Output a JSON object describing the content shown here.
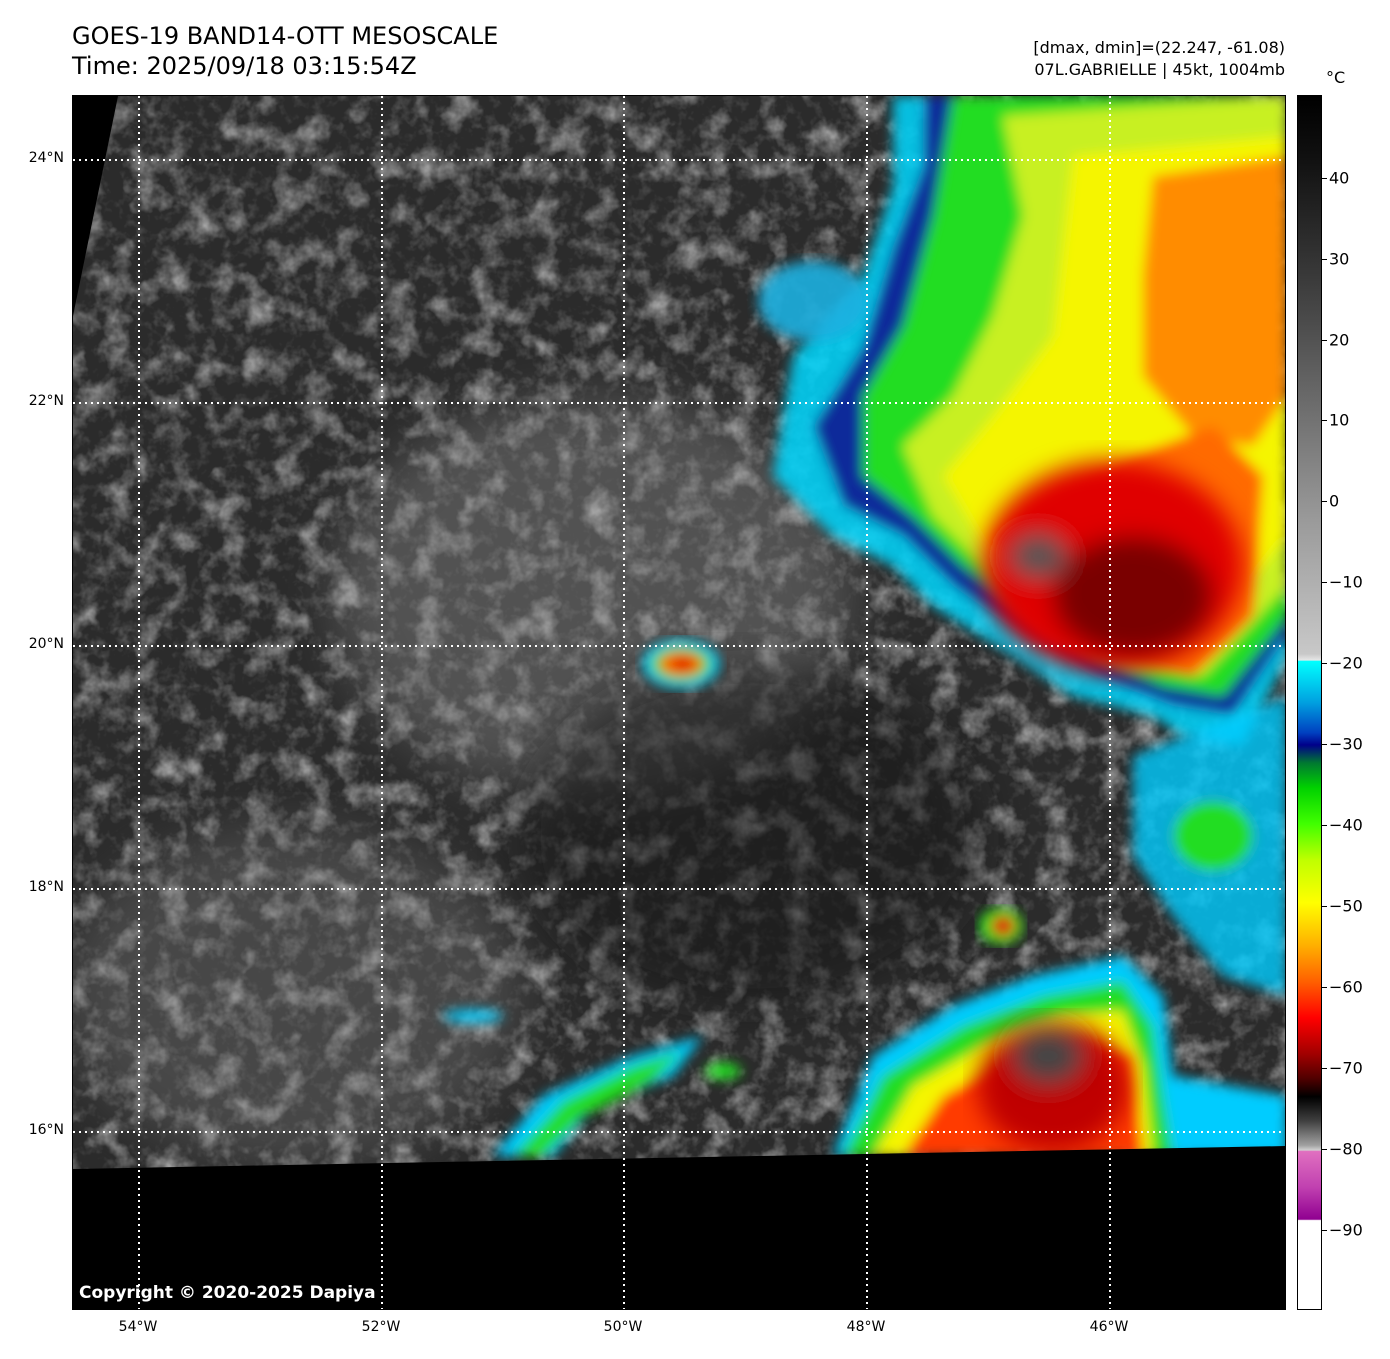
{
  "title": {
    "line1": "GOES-19 BAND14-OTT MESOSCALE",
    "line2": "Time: 2025/09/18 03:15:54Z"
  },
  "info": {
    "line1": "[dmax, dmin]=(22.247, -61.08)",
    "line2": "07L.GABRIELLE | 45kt, 1004mb"
  },
  "copyright": "Copyright © 2020-2025 Dapiya",
  "lat_labels": [
    "24°N",
    "22°N",
    "20°N",
    "18°N",
    "16°N"
  ],
  "lon_labels": [
    "54°W",
    "52°W",
    "50°W",
    "48°W",
    "46°W"
  ],
  "colorbar": {
    "unit": "°C",
    "labels": [
      "40",
      "30",
      "20",
      "10",
      "0",
      "−10",
      "−20",
      "−30",
      "−40",
      "−50",
      "−60",
      "−70",
      "−80",
      "−90"
    ]
  },
  "colors": {
    "warm_ocean": "#1a1a1a",
    "cloud_gray": "#bcbcbc",
    "cyan": "#00e5ff",
    "blue": "#0030a0",
    "green": "#22dd22",
    "yellow": "#f5f500",
    "orange": "#ff8c00",
    "red": "#e60000",
    "dark_red": "#5a0000",
    "magenta": "#c040b0"
  }
}
